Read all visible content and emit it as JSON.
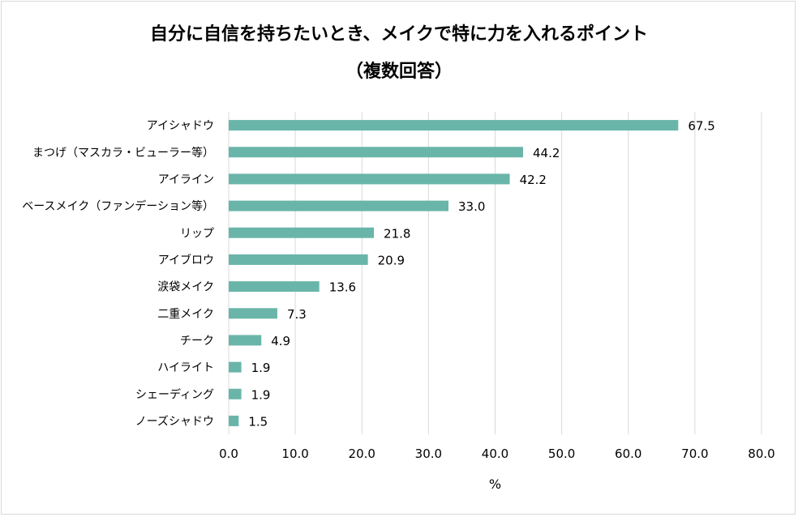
{
  "chart_data": {
    "type": "bar",
    "orientation": "horizontal",
    "title": "自分に自信を持ちたいとき、メイクで特に力を入れるポイント",
    "subtitle": "（複数回答）",
    "xlabel": "%",
    "xlim": [
      0,
      80
    ],
    "xticks": [
      "0.0",
      "10.0",
      "20.0",
      "30.0",
      "40.0",
      "50.0",
      "60.0",
      "70.0",
      "80.0"
    ],
    "grid": true,
    "bar_color": "#6ab5aa",
    "categories": [
      "アイシャドウ",
      "まつげ（マスカラ・ビューラー等）",
      "アイライン",
      "ベースメイク（ファンデーション等）",
      "リップ",
      "アイブロウ",
      "涙袋メイク",
      "二重メイク",
      "チーク",
      "ハイライト",
      "シェーディング",
      "ノーズシャドウ"
    ],
    "values": [
      67.5,
      44.2,
      42.2,
      33.0,
      21.8,
      20.9,
      13.6,
      7.3,
      4.9,
      1.9,
      1.9,
      1.5
    ],
    "value_labels": [
      "67.5",
      "44.2",
      "42.2",
      "33.0",
      "21.8",
      "20.9",
      "13.6",
      "7.3",
      "4.9",
      "1.9",
      "1.9",
      "1.5"
    ]
  }
}
